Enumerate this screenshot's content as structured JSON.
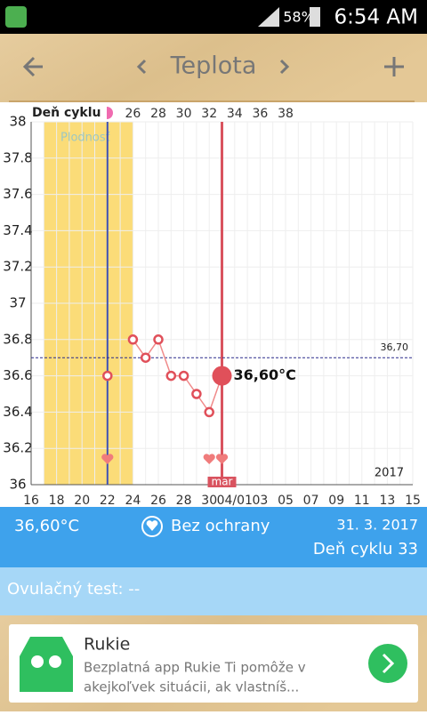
{
  "status_bar": {
    "battery": "58%",
    "time": "6:54 AM"
  },
  "header": {
    "title": "Teplota"
  },
  "chart_data": {
    "type": "line",
    "categories": [
      "16",
      null,
      "18",
      null,
      "20",
      null,
      "22",
      null,
      "24",
      null,
      "26",
      null,
      "28",
      null,
      "30",
      null,
      "04/01",
      null,
      "03",
      null,
      "05",
      null,
      "07",
      null,
      "09",
      null,
      "11",
      null,
      "13",
      null,
      "15"
    ],
    "series": [
      {
        "color": "#f08a8a",
        "values": [
          null,
          null,
          null,
          null,
          null,
          null,
          36.6,
          null,
          36.8,
          36.7,
          36.8,
          36.6,
          36.6,
          36.5,
          36.4,
          36.6,
          null,
          null,
          null,
          null,
          null,
          null,
          null,
          null,
          null,
          null,
          null,
          null,
          null,
          null,
          null
        ],
        "value_labels": [
          null,
          null,
          null,
          null,
          null,
          null,
          null,
          null,
          null,
          null,
          null,
          null,
          null,
          null,
          null,
          "36,60°C",
          null,
          null,
          null,
          null,
          null,
          null,
          null,
          null,
          null,
          null,
          null,
          null,
          null,
          null,
          null
        ]
      }
    ],
    "ylim": [
      36,
      38
    ],
    "yticks": [
      36,
      36.2,
      36.4,
      36.6,
      36.8,
      37,
      37.2,
      37.4,
      37.6,
      37.8,
      38
    ],
    "cycle_axis_label": "Deň cyklu",
    "cycle_ticks": [
      26,
      28,
      30,
      32,
      34,
      36,
      38
    ],
    "fertile_label": "Plodnosť",
    "coverline": {
      "value": 36.7,
      "label": "36,70"
    },
    "year": "2017",
    "month_label": "mar",
    "grid": true
  },
  "info": {
    "temperature": "36,60°C",
    "protection": "Bez ochrany",
    "date": "31. 3. 2017",
    "cycle_day": "Deň cyklu 33"
  },
  "ovulation_test": "Ovulačný test: --",
  "ad": {
    "title": "Rukie",
    "lines": [
      "Bezplatná app Rukie Ti pomôže v",
      "akejkoľvek situácii, ak vlastníš..."
    ]
  }
}
